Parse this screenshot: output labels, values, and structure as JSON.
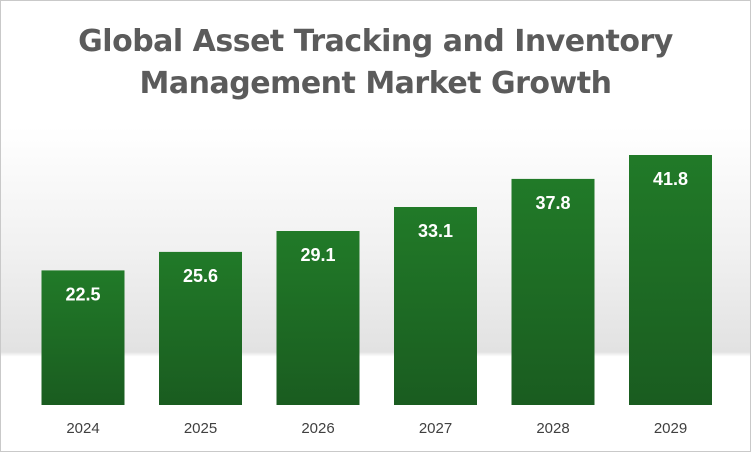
{
  "chart_data": {
    "type": "bar",
    "title_line1": "Global Asset Tracking and Inventory",
    "title_line2": "Management Market Growth",
    "categories": [
      "2024",
      "2025",
      "2026",
      "2027",
      "2028",
      "2029"
    ],
    "values": [
      22.5,
      25.6,
      29.1,
      33.1,
      37.8,
      41.8
    ],
    "xlabel": "",
    "ylabel": "",
    "ylim": [
      0,
      45
    ],
    "grid": false,
    "legend": "none",
    "data_labels": true,
    "bar_color": "#1e6b24"
  }
}
